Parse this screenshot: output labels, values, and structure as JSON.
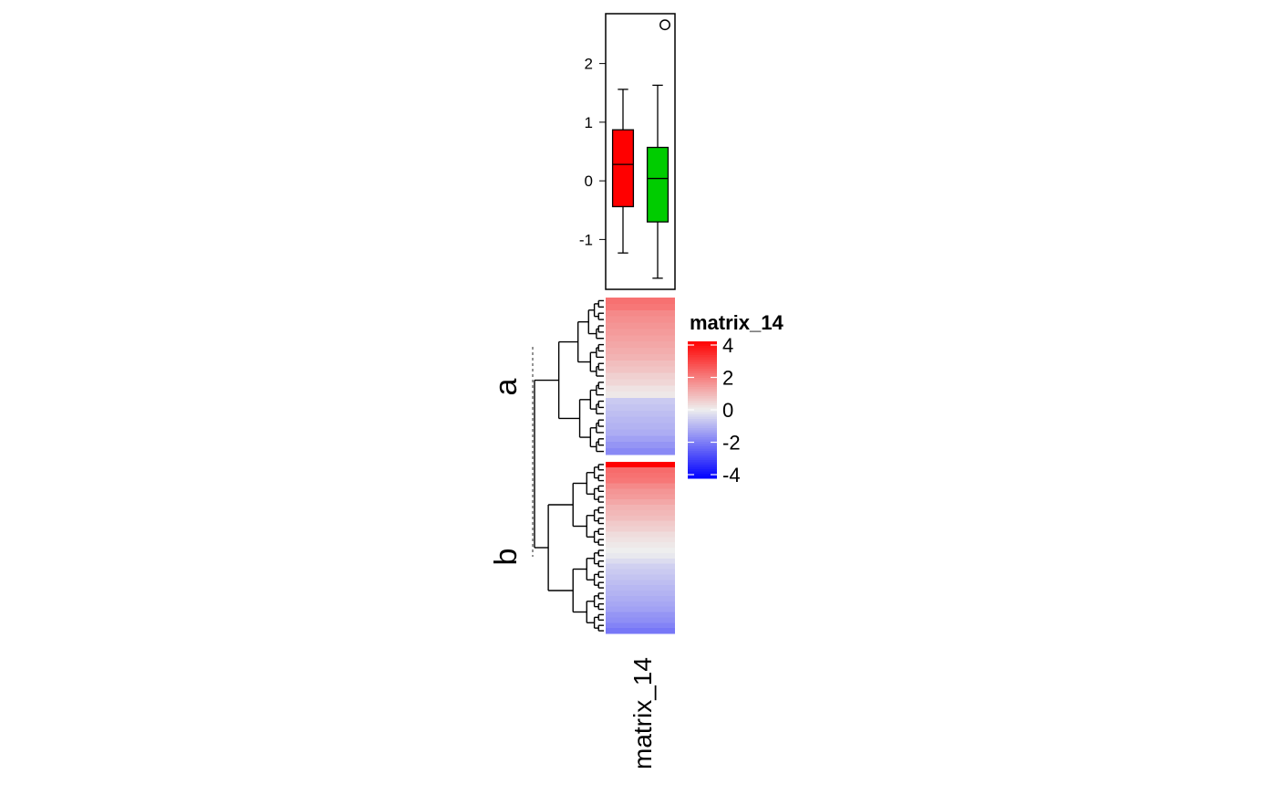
{
  "chart_data": [
    {
      "type": "boxplot",
      "title": "",
      "xlabel": "",
      "ylabel": "",
      "ylim": [
        -1.85,
        2.85
      ],
      "y_ticks": [
        -1,
        0,
        1,
        2
      ],
      "y_tick_labels": [
        "-1",
        "0",
        "1",
        "2"
      ],
      "grid": false,
      "series": [
        {
          "group": "a",
          "color": "#ff0000",
          "whisker_low": -1.23,
          "q1": -0.44,
          "median": 0.28,
          "q3": 0.87,
          "whisker_high": 1.56,
          "outliers": []
        },
        {
          "group": "b",
          "color": "#00cc00",
          "whisker_low": -1.66,
          "q1": -0.7,
          "median": 0.04,
          "q3": 0.57,
          "whisker_high": 1.63,
          "outliers": [
            2.66
          ]
        }
      ]
    },
    {
      "type": "heatmap",
      "column_label": "matrix_14",
      "row_slices": [
        {
          "name": "a",
          "values": [
            2.1,
            2.0,
            1.7,
            1.6,
            1.5,
            1.4,
            1.3,
            1.2,
            1.1,
            1.0,
            0.8,
            0.7,
            0.5,
            0.4,
            0.2,
            0.1,
            -0.6,
            -0.7,
            -0.8,
            -0.9,
            -1.0,
            -1.1,
            -1.3,
            -1.5,
            -1.7
          ]
        },
        {
          "name": "b",
          "values": [
            4.0,
            2.2,
            2.1,
            2.0,
            1.7,
            1.5,
            1.4,
            1.2,
            1.0,
            0.9,
            0.8,
            0.6,
            0.5,
            0.3,
            0.2,
            0.1,
            0.0,
            -0.1,
            -0.3,
            -0.5,
            -0.6,
            -0.7,
            -0.8,
            -0.9,
            -1.0,
            -1.1,
            -1.2,
            -1.3,
            -1.5,
            -1.6,
            -1.8,
            -2.0
          ]
        }
      ],
      "legend": {
        "title": "matrix_14",
        "breaks": [
          4,
          2,
          0,
          -2,
          -4
        ],
        "labels": [
          "4",
          "2",
          "0",
          "-2",
          "-4"
        ],
        "colors": {
          "low": "#0000ff",
          "mid": "#eeeeee",
          "high": "#ff0000"
        },
        "range": [
          -4,
          4
        ]
      }
    }
  ]
}
